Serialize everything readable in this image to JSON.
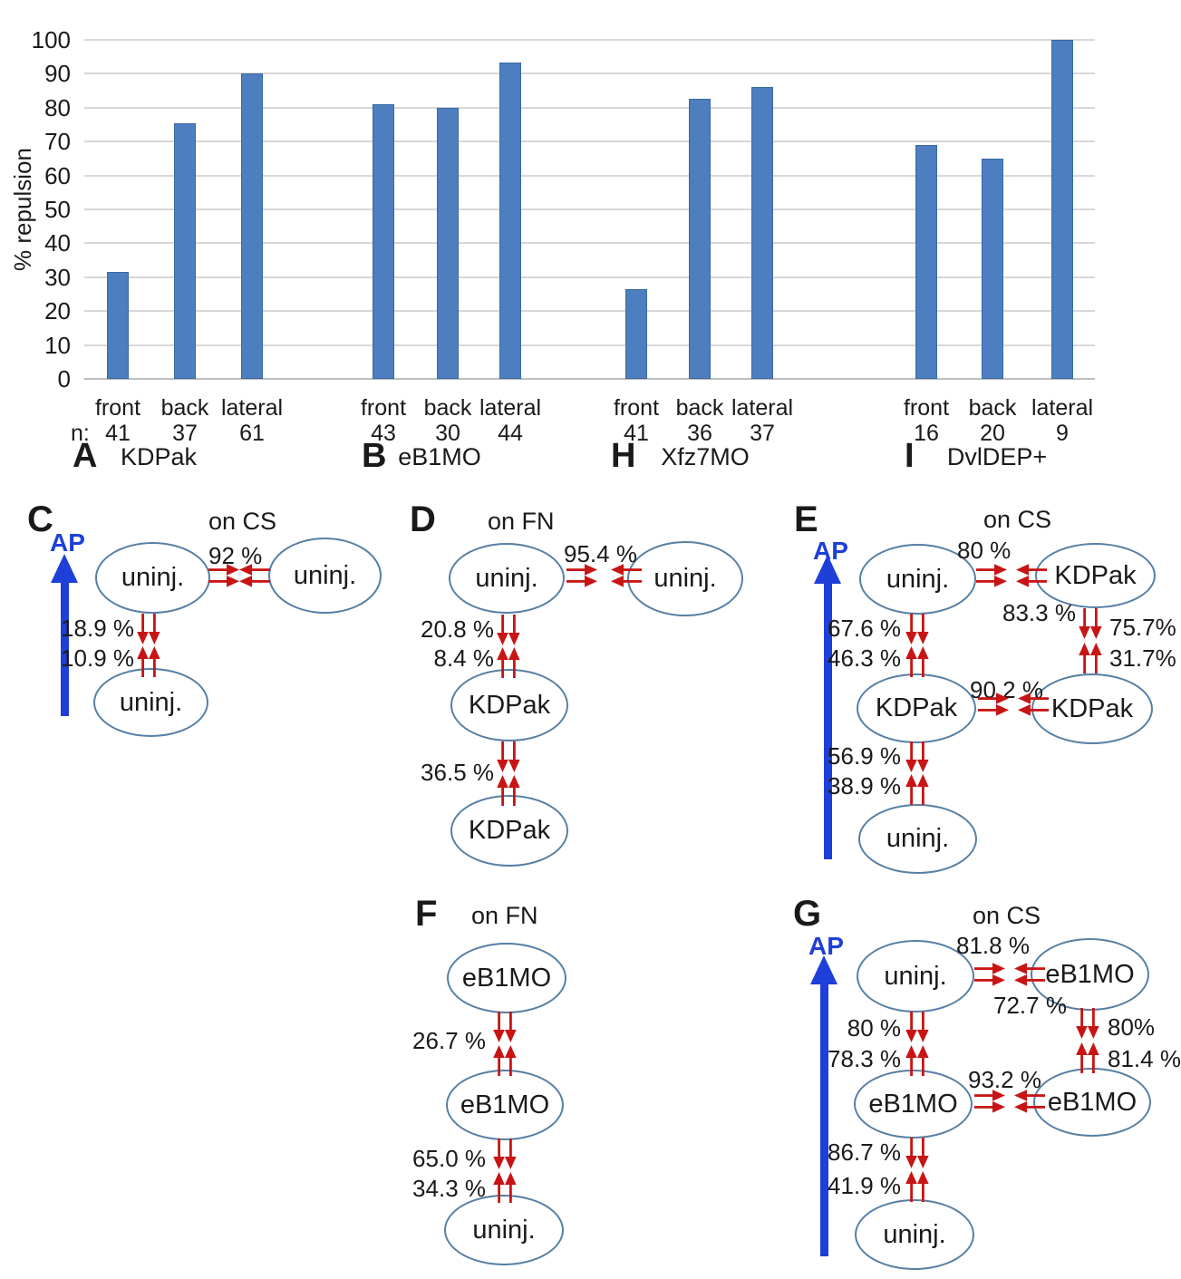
{
  "colors": {
    "bar_fill": "#4d7ebf",
    "bar_edge": "#3a69a3",
    "gridline": "#d8d8d8",
    "baseline": "#bdbdbd",
    "arrow_red": "#c81414",
    "ap_blue": "#1e3fd8",
    "node_border": "#567fa5",
    "text": "#1a1a1a"
  },
  "chart_data": {
    "type": "bar",
    "title": "",
    "ylabel": "% repulsion",
    "n_prefix": "n:",
    "ylim": [
      0,
      100
    ],
    "y_ticks": [
      0,
      10,
      20,
      30,
      40,
      50,
      60,
      70,
      80,
      90,
      100
    ],
    "grid": true,
    "legend": false,
    "categories": [
      "front",
      "back",
      "lateral"
    ],
    "groups": [
      {
        "panel": "A",
        "label": "KDPak",
        "n": [
          41,
          37,
          61
        ],
        "values": [
          31.5,
          75.5,
          90
        ]
      },
      {
        "panel": "B",
        "label": "eB1MO",
        "n": [
          43,
          30,
          44
        ],
        "values": [
          81,
          80,
          93.3
        ]
      },
      {
        "panel": "H",
        "label": "Xfz7MO",
        "n": [
          41,
          36,
          37
        ],
        "values": [
          26.5,
          82.5,
          86
        ]
      },
      {
        "panel": "I",
        "label": "DvlDEP+",
        "n": [
          16,
          20,
          9
        ],
        "values": [
          69,
          65,
          100
        ]
      }
    ]
  },
  "panels": {
    "C": {
      "letter": "C",
      "title": "on CS",
      "ap": "AP",
      "nodes": {
        "tl": "uninj.",
        "tr": "uninj.",
        "bl": "uninj."
      },
      "labels": {
        "h_top": "92 %",
        "v1_down": "18.9 %",
        "v1_up": "10.9 %"
      }
    },
    "D": {
      "letter": "D",
      "title": "on FN",
      "nodes": {
        "tl": "uninj.",
        "tr": "uninj.",
        "ml": "KDPak",
        "bl": "KDPak"
      },
      "labels": {
        "h_top": "95.4 %",
        "v1_down": "20.8 %",
        "v1_up": "8.4 %",
        "v2": "36.5 %"
      }
    },
    "E": {
      "letter": "E",
      "title": "on CS",
      "ap": "AP",
      "nodes": {
        "tl": "uninj.",
        "tr": "KDPak",
        "ml": "KDPak",
        "mr": "KDPak",
        "bl": "uninj."
      },
      "labels": {
        "h_top": "80 %",
        "h_top_right": "83.3 %",
        "left_down": "67.6 %",
        "left_up": "46.3 %",
        "right_down": "75.7%",
        "right_up": "31.7%",
        "h_mid": "90.2 %",
        "bottom_down": "56.9 %",
        "bottom_up": "38.9 %"
      }
    },
    "F": {
      "letter": "F",
      "title": "on FN",
      "nodes": {
        "top": "eB1MO",
        "mid": "eB1MO",
        "bottom": "uninj."
      },
      "labels": {
        "v1": "26.7 %",
        "v2_down": "65.0 %",
        "v2_up": "34.3 %"
      }
    },
    "G": {
      "letter": "G",
      "title": "on CS",
      "ap": "AP",
      "nodes": {
        "tl": "uninj.",
        "tr": "eB1MO",
        "ml": "eB1MO",
        "mr": "eB1MO",
        "bl": "uninj."
      },
      "labels": {
        "h_top": "81.8 %",
        "h_top_right": "72.7 %",
        "left_down": "80 %",
        "left_up": "78.3 %",
        "right_down": "80%",
        "right_up": "81.4 %",
        "h_mid": "93.2 %",
        "bottom_down": "86.7 %",
        "bottom_up": "41.9 %"
      }
    }
  }
}
